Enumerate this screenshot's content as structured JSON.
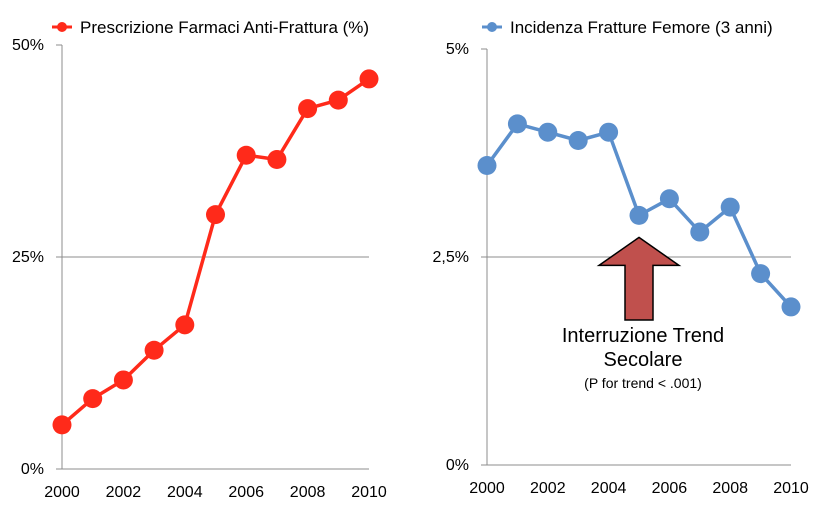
{
  "chart_data": [
    {
      "type": "line",
      "series": [
        {
          "name": "Prescrizione Farmaci Anti-Frattura (%)",
          "color": "#ff2a1a",
          "x": [
            2000,
            2001,
            2002,
            2003,
            2004,
            2005,
            2006,
            2007,
            2008,
            2009,
            2010
          ],
          "values": [
            5.2,
            8.3,
            10.5,
            14.0,
            17.0,
            30.0,
            37.0,
            36.5,
            42.5,
            43.5,
            46.0
          ]
        }
      ],
      "x_ticks": [
        "2000",
        "2002",
        "2004",
        "2006",
        "2008",
        "2010"
      ],
      "y_ticks": [
        "0%",
        "25%",
        "50%"
      ],
      "xlim": [
        2000,
        2010
      ],
      "ylim": [
        0,
        50
      ],
      "grid": "horizontal at 25%",
      "legend": "top"
    },
    {
      "type": "line",
      "series": [
        {
          "name": "Incidenza Fratture Femore (3 anni)",
          "color": "#5b8fcc",
          "x": [
            2000,
            2001,
            2002,
            2003,
            2004,
            2005,
            2006,
            2007,
            2008,
            2009,
            2010
          ],
          "values": [
            3.6,
            4.1,
            4.0,
            3.9,
            4.0,
            3.0,
            3.2,
            2.8,
            3.1,
            2.3,
            1.9
          ]
        }
      ],
      "x_ticks": [
        "2000",
        "2002",
        "2004",
        "2006",
        "2008",
        "2010"
      ],
      "y_ticks": [
        "0%",
        "2,5%",
        "5%"
      ],
      "xlim": [
        2000,
        2010
      ],
      "ylim": [
        0,
        5
      ],
      "grid": "horizontal at 2,5%",
      "legend": "top",
      "annotation": {
        "arrow_at_x": 2005,
        "arrow_color": "#c0504d",
        "text_line1": "Interruzione Trend",
        "text_line2": "Secolare",
        "text_line3": "(P for trend < .001)"
      }
    }
  ]
}
